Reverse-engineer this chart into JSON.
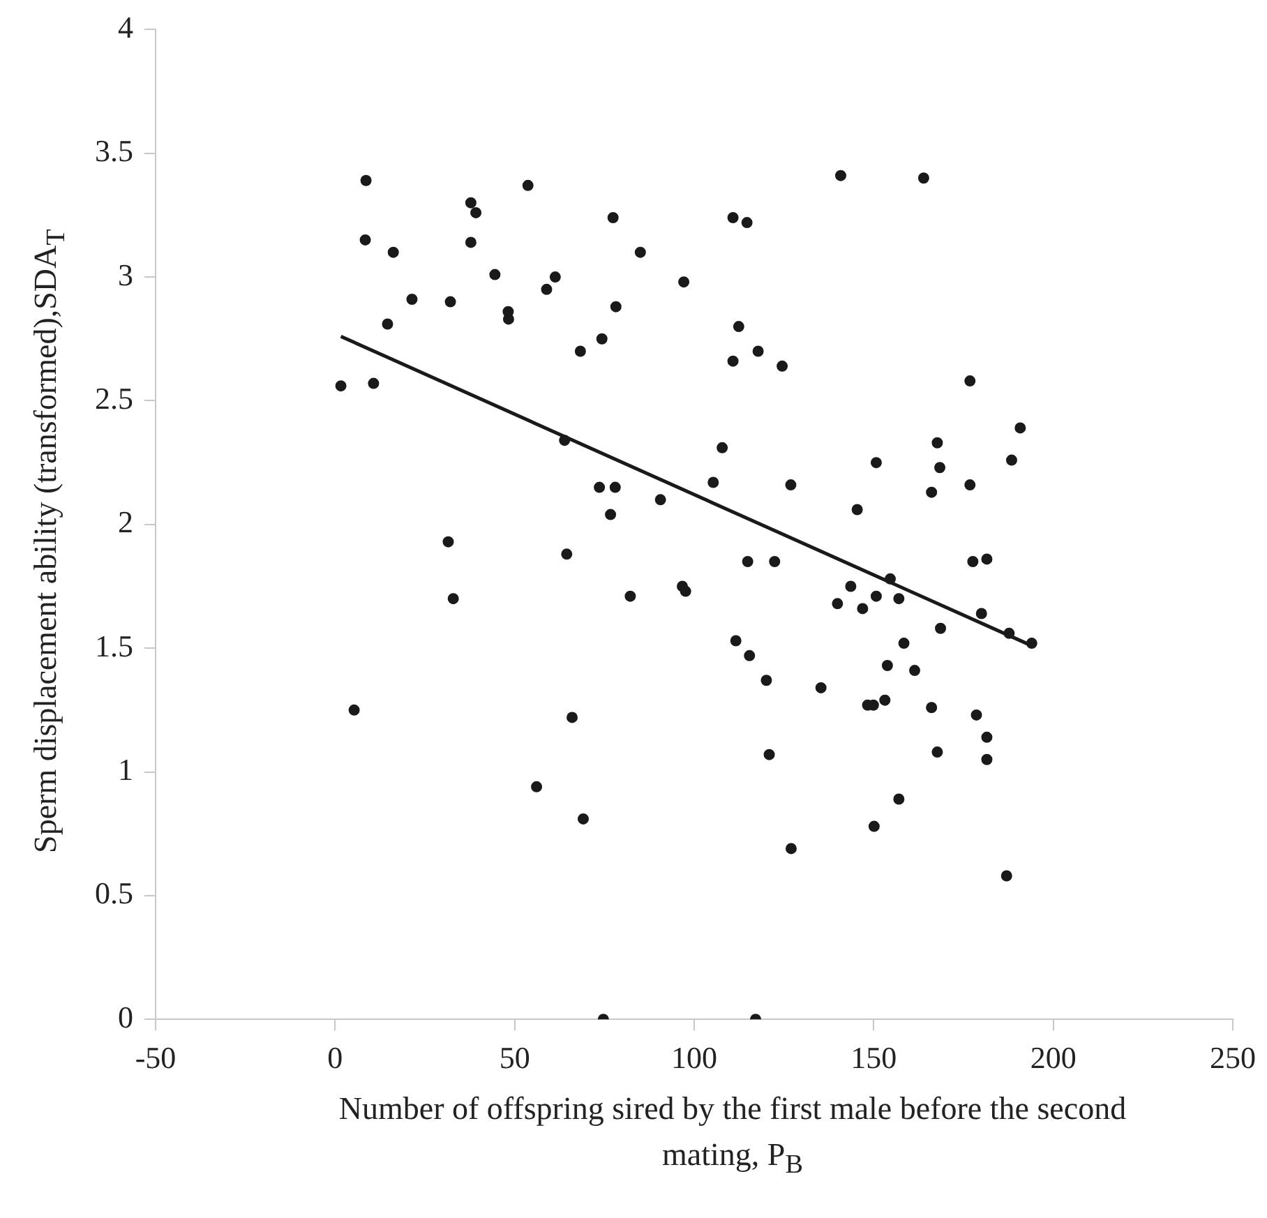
{
  "chart_data": {
    "type": "scatter",
    "xlabel": "Number of offspring sired by the first male before the second mating, P$_{B}$",
    "ylabel": "Sperm displacement ability (transformed),SDA$_{T}$",
    "xlim": [
      -50,
      250
    ],
    "xticks": [
      -50,
      0,
      50,
      100,
      150,
      200,
      250
    ],
    "ylim": [
      0,
      4
    ],
    "yticks": [
      0,
      0.5,
      1,
      1.5,
      2,
      2.5,
      3,
      3.5,
      4
    ],
    "grid": false,
    "legend": false,
    "series": [
      {
        "type": "scatter",
        "marker": "circle",
        "color": "#1a1a1a",
        "x": [
          8.6,
          8.4,
          16.2,
          21.4,
          14.6,
          1.6,
          10.7,
          32.1,
          37.8,
          39.2,
          37.8,
          44.5,
          53.7,
          48.2,
          48.3,
          58.9,
          61.3,
          77.4,
          85.0,
          78.2,
          68.3,
          74.3,
          63.9,
          73.6,
          78.0,
          76.7,
          90.6,
          97.1,
          31.5,
          64.5,
          140.8,
          163.9,
          110.8,
          114.7,
          112.4,
          117.8,
          110.8,
          124.5,
          176.8,
          190.8,
          167.7,
          107.8,
          150.7,
          168.4,
          188.4,
          105.3,
          126.9,
          166.1,
          176.8,
          145.4,
          114.9,
          122.4,
          82.2,
          96.7,
          97.6,
          177.6,
          181.5,
          143.6,
          154.6,
          139.9,
          146.9,
          150.7,
          157.0,
          180.0,
          168.6,
          187.7,
          194.0,
          158.4,
          111.6,
          115.4,
          153.8,
          161.4,
          120.1,
          135.3,
          148.3,
          149.9,
          153.1,
          166.1,
          178.6,
          181.5,
          120.9,
          167.7,
          181.5,
          157.0,
          150.1,
          127.0,
          187.0,
          117.1,
          32.9,
          5.3,
          66.0,
          56.1,
          69.1,
          74.7
        ],
        "values": [
          3.39,
          3.15,
          3.1,
          2.91,
          2.81,
          2.56,
          2.57,
          2.9,
          3.3,
          3.26,
          3.14,
          3.01,
          3.37,
          2.86,
          2.83,
          2.95,
          3.0,
          3.24,
          3.1,
          2.88,
          2.7,
          2.75,
          2.34,
          2.15,
          2.15,
          2.04,
          2.1,
          2.98,
          1.93,
          1.88,
          3.41,
          3.4,
          3.24,
          3.22,
          2.8,
          2.7,
          2.66,
          2.64,
          2.58,
          2.39,
          2.33,
          2.31,
          2.25,
          2.23,
          2.26,
          2.17,
          2.16,
          2.13,
          2.16,
          2.06,
          1.85,
          1.85,
          1.71,
          1.75,
          1.73,
          1.85,
          1.86,
          1.75,
          1.78,
          1.68,
          1.66,
          1.71,
          1.7,
          1.64,
          1.58,
          1.56,
          1.52,
          1.52,
          1.53,
          1.47,
          1.43,
          1.41,
          1.37,
          1.34,
          1.27,
          1.27,
          1.29,
          1.26,
          1.23,
          1.14,
          1.07,
          1.08,
          1.05,
          0.89,
          0.78,
          0.69,
          0.58,
          0.0,
          1.7,
          1.25,
          1.22,
          0.94,
          0.81,
          0.0
        ]
      },
      {
        "type": "line",
        "marker": "none",
        "color": "#1a1a1a",
        "x": [
          1.6,
          194
        ],
        "values": [
          2.76,
          1.51
        ]
      }
    ]
  }
}
